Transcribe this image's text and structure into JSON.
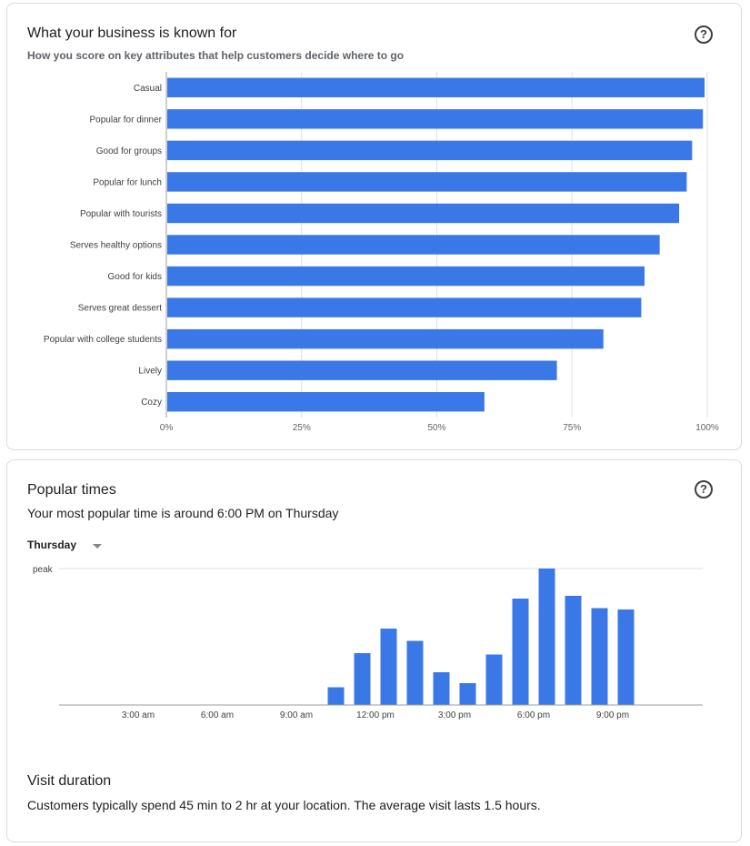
{
  "known_for": {
    "title": "What your business is known for",
    "subtitle": "How you score on key attributes that help customers decide where to go",
    "help_icon": "?"
  },
  "popular_times": {
    "title": "Popular times",
    "summary": "Your most popular time is around 6:00 PM on Thursday",
    "day_selected": "Thursday",
    "help_icon": "?"
  },
  "visit_duration": {
    "title": "Visit duration",
    "text": "Customers typically spend 45 min to 2 hr at your location. The average visit lasts 1.5 hours."
  },
  "colors": {
    "bar": "#3b78e7",
    "grid": "#e0e0e0",
    "axis": "#9e9e9e"
  },
  "chart_data": [
    {
      "type": "bar",
      "orientation": "horizontal",
      "categories": [
        "Casual",
        "Popular for dinner",
        "Good for groups",
        "Popular for lunch",
        "Popular with tourists",
        "Serves healthy options",
        "Good for kids",
        "Serves great dessert",
        "Popular with college students",
        "Lively",
        "Cozy"
      ],
      "values": [
        99.5,
        99.2,
        97.2,
        96.2,
        94.8,
        91.2,
        88.4,
        87.8,
        80.8,
        72.2,
        58.8
      ],
      "xlim": [
        0,
        100
      ],
      "xticks": [
        "0%",
        "25%",
        "50%",
        "75%",
        "100%"
      ],
      "grid": true
    },
    {
      "type": "bar",
      "hours": [
        0,
        1,
        2,
        3,
        4,
        5,
        6,
        7,
        8,
        9,
        10,
        11,
        12,
        13,
        14,
        15,
        16,
        17,
        18,
        19,
        20,
        21,
        22,
        23
      ],
      "values": [
        0,
        0,
        0,
        0,
        0,
        0,
        0,
        0,
        0,
        0,
        13,
        38,
        56,
        47,
        24,
        16,
        37,
        78,
        100,
        80,
        71,
        70,
        0,
        0
      ],
      "ylim": [
        0,
        100
      ],
      "y_label": "peak",
      "xticks": [
        {
          "hour": 3,
          "label": "3:00 am"
        },
        {
          "hour": 6,
          "label": "6:00 am"
        },
        {
          "hour": 9,
          "label": "9:00 am"
        },
        {
          "hour": 12,
          "label": "12:00 pm"
        },
        {
          "hour": 15,
          "label": "3:00 pm"
        },
        {
          "hour": 18,
          "label": "6:00 pm"
        },
        {
          "hour": 21,
          "label": "9:00 pm"
        }
      ]
    }
  ]
}
